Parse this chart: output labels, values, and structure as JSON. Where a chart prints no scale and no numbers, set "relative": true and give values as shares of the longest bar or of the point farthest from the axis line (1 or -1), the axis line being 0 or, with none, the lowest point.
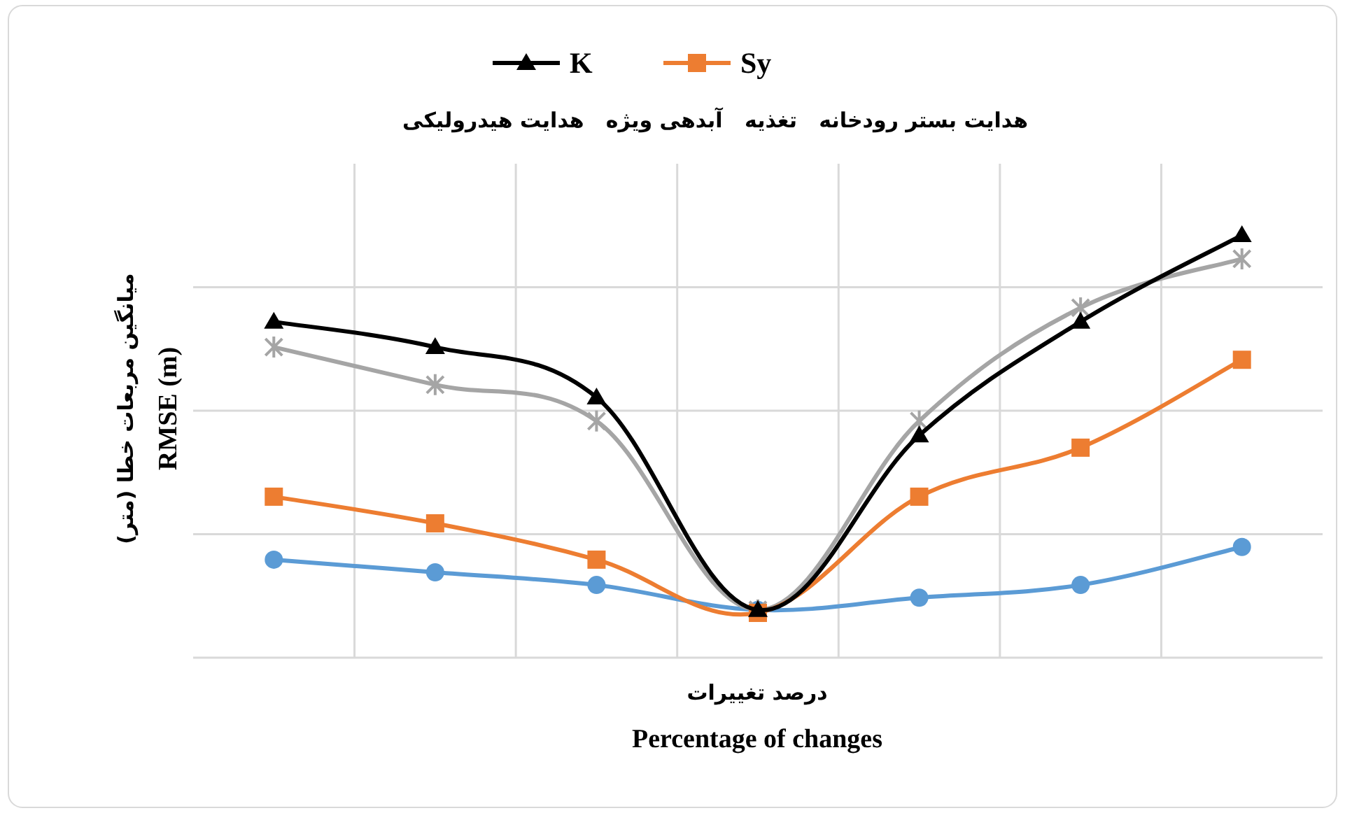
{
  "chart_data": {
    "type": "line",
    "relative": true,
    "subtitle": "هدایت بستر رودخانه   تغذیه   آبدهی ویژه   هدایت هیدرولیکی",
    "xlabel": "Percentage of changes",
    "ylabel": "RMSE (m)",
    "annotations": [
      "درصد تغییرات",
      "میانگین مربعات خطا (متر)"
    ],
    "categories": [
      null,
      null,
      null,
      null,
      null,
      null,
      null
    ],
    "series": [
      {
        "name": "K",
        "color": "#000000",
        "marker": "triangle",
        "values": [
          0.795,
          0.735,
          0.616,
          0.113,
          0.526,
          0.795,
          1
        ]
      },
      {
        "name": "Sy",
        "color": "#ed7d31",
        "marker": "square",
        "values": [
          0.381,
          0.318,
          0.232,
          0.106,
          0.381,
          0.497,
          0.705
        ]
      },
      {
        "color": "#a5a5a5",
        "marker": "cross",
        "values": [
          0.735,
          0.646,
          0.56,
          0.113,
          0.56,
          0.828,
          0.944
        ]
      },
      {
        "color": "#5b9bd5",
        "marker": "circle",
        "values": [
          0.232,
          0.202,
          0.172,
          0.113,
          0.142,
          0.172,
          0.262
        ]
      }
    ],
    "grid": true,
    "legend": "top",
    "line_style": "solid"
  }
}
